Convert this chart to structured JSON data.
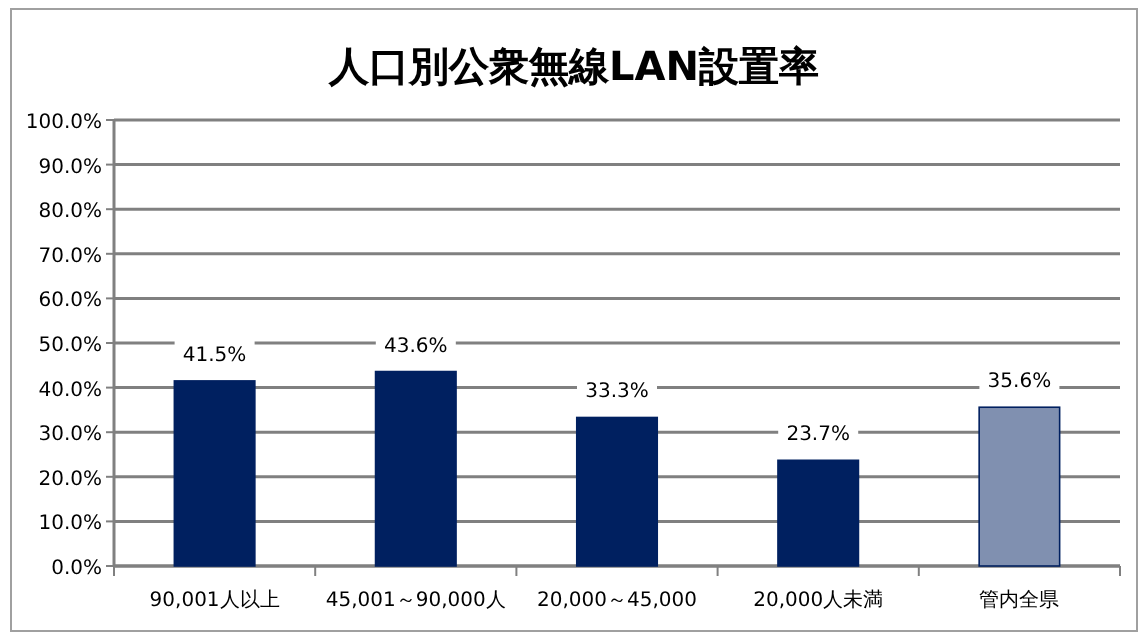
{
  "chart_data": {
    "type": "bar",
    "title": "人口別公衆無線LAN設置率",
    "categories": [
      "90,001人以上",
      "45,001～90,000人",
      "20,000～45,000",
      "20,000人未満",
      "管内全県"
    ],
    "values": [
      41.5,
      43.6,
      33.3,
      23.7,
      35.6
    ],
    "value_labels": [
      "41.5%",
      "43.6%",
      "33.3%",
      "23.7%",
      "35.6%"
    ],
    "colors": [
      "#002060",
      "#002060",
      "#002060",
      "#002060",
      "#8090b0"
    ],
    "ylim": [
      0,
      100
    ],
    "yticks": [
      {
        "value": 0,
        "label": "0.0%"
      },
      {
        "value": 10,
        "label": "10.0%"
      },
      {
        "value": 20,
        "label": "20.0%"
      },
      {
        "value": 30,
        "label": "30.0%"
      },
      {
        "value": 40,
        "label": "40.0%"
      },
      {
        "value": 50,
        "label": "50.0%"
      },
      {
        "value": 60,
        "label": "60.0%"
      },
      {
        "value": 70,
        "label": "70.0%"
      },
      {
        "value": 80,
        "label": "80.0%"
      },
      {
        "value": 90,
        "label": "90.0%"
      },
      {
        "value": 100,
        "label": "100.0%"
      }
    ],
    "grid": "y"
  }
}
